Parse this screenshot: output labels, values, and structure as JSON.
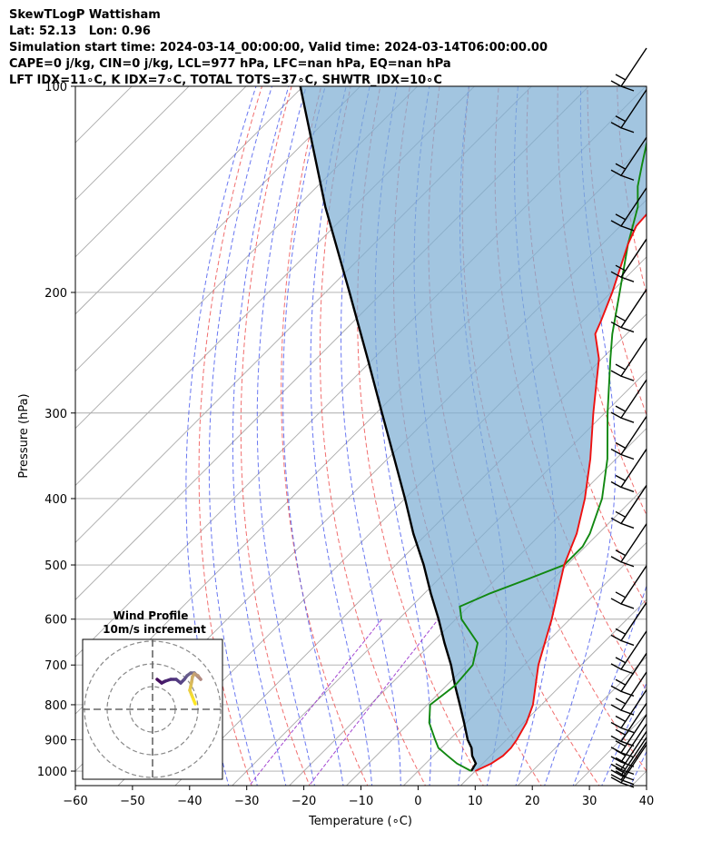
{
  "title_lines": [
    "SkewTLogP Wattisham",
    "Lat: 52.13   Lon: 0.96",
    "Simulation start time: 2024-03-14_00:00:00, Valid time: 2024-03-14T06:00:00.00",
    "CAPE=0 j/kg, CIN=0 j/kg, LCL=977 hPa, LFC=nan hPa, EQ=nan hPa",
    "LFT IDX=11∘C, K IDX=7∘C, TOTAL TOTS=37∘C, SHWTR_IDX=10∘C"
  ],
  "chart_data": {
    "type": "skewt-logp",
    "xlabel": "Temperature (∘C)",
    "ylabel": "Pressure (hPa)",
    "xlim": [
      -60,
      40
    ],
    "ylim": [
      1050,
      100
    ],
    "xticks": [
      -60,
      -50,
      -40,
      -30,
      -20,
      -10,
      0,
      10,
      20,
      30,
      40
    ],
    "xtick_labels": [
      "−60",
      "−50",
      "−40",
      "−30",
      "−20",
      "−10",
      "0",
      "10",
      "20",
      "30",
      "40"
    ],
    "yticks": [
      1000,
      900,
      800,
      700,
      600,
      500,
      400,
      300,
      200,
      100
    ],
    "ytick_labels": [
      "1000",
      "900",
      "800",
      "700",
      "600",
      "500",
      "400",
      "300",
      "200",
      "100"
    ],
    "grid": true,
    "colors": {
      "temperature": "#ee1111",
      "dewpoint": "#118811",
      "parcel": "#000000",
      "cin_fill": "#7eaed4",
      "isotherm": "#aaaaaa",
      "dry_adiabat": "#ee5555",
      "moist_adiabat": "#4455ee",
      "mixing_ratio": "#9933cc"
    },
    "series": [
      {
        "key": "temperature",
        "pressure": [
          1000,
          975,
          950,
          925,
          900,
          850,
          800,
          700,
          600,
          500,
          450,
          400,
          350,
          300,
          250,
          230,
          220,
          200,
          170,
          160,
          150,
          130,
          115,
          100
        ],
        "temperature": [
          10,
          11.5,
          12.2,
          12.2,
          11.8,
          10.5,
          8.5,
          2.5,
          -3.2,
          -10.5,
          -13.8,
          -18.5,
          -24.5,
          -32,
          -40.5,
          -45.5,
          -46.8,
          -49.8,
          -55.5,
          -57.2,
          -57.6,
          -59.8,
          -62.2,
          -66.3
        ]
      },
      {
        "key": "dewpoint",
        "pressure": [
          1000,
          975,
          950,
          925,
          900,
          850,
          800,
          750,
          700,
          650,
          600,
          575,
          550,
          525,
          500,
          470,
          450,
          400,
          350,
          300,
          250,
          230,
          200,
          170,
          150,
          140,
          130,
          115,
          100
        ],
        "temperature": [
          9.3,
          5.5,
          2.5,
          -0.5,
          -2.5,
          -6.5,
          -9.5,
          -8.5,
          -9,
          -12,
          -19,
          -21.5,
          -18.5,
          -14.5,
          -10.5,
          -10.5,
          -11.5,
          -15.5,
          -21.5,
          -29.5,
          -38.5,
          -42.5,
          -48.5,
          -55.5,
          -60.3,
          -63.9,
          -67,
          -72,
          -78.1
        ]
      },
      {
        "key": "parcel",
        "pressure": [
          1000,
          975,
          950,
          925,
          900,
          850,
          800,
          750,
          700,
          650,
          600,
          550,
          500,
          450,
          400,
          350,
          300,
          250,
          200,
          150,
          100
        ],
        "temperature": [
          9.3,
          8.8,
          6.8,
          5.3,
          3.2,
          -0.4,
          -4.3,
          -8.5,
          -12.8,
          -17.8,
          -23,
          -28.9,
          -35.1,
          -42.4,
          -50,
          -58.8,
          -69,
          -81,
          -95.8,
          -115,
          -140.5
        ]
      }
    ],
    "wind_barbs": {
      "pressure": [
        1040,
        1030,
        1015,
        995,
        970,
        940,
        905,
        865,
        815,
        765,
        710,
        645,
        570,
        495,
        435,
        385,
        345,
        305,
        265,
        225,
        190,
        160,
        135,
        115,
        100
      ]
    },
    "hodograph": {
      "title": "Wind Profile",
      "subtitle": "10m/s increment"
    }
  }
}
